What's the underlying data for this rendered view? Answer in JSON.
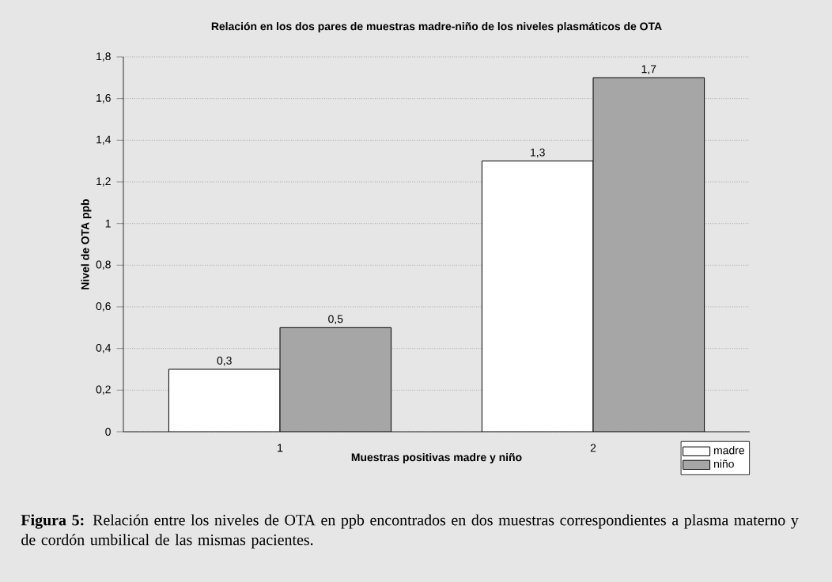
{
  "chart_data": {
    "type": "bar",
    "title": "Relación en los dos pares de muestras madre-niño de los niveles plasmáticos de OTA",
    "xlabel": "Muestras positivas madre y niño",
    "ylabel": "Nivel de OTA ppb",
    "categories": [
      "1",
      "2"
    ],
    "series": [
      {
        "name": "madre",
        "color": "#ffffff",
        "values": [
          0.3,
          1.3
        ],
        "value_labels": [
          "0,3",
          "1,3"
        ]
      },
      {
        "name": "niño",
        "color": "#a6a6a6",
        "values": [
          0.5,
          1.7
        ],
        "value_labels": [
          "0,5",
          "1,7"
        ]
      }
    ],
    "ylim": [
      0,
      1.8
    ],
    "yticks": [
      {
        "value": 0,
        "label": "0"
      },
      {
        "value": 0.2,
        "label": "0,2"
      },
      {
        "value": 0.4,
        "label": "0,4"
      },
      {
        "value": 0.6,
        "label": "0,6"
      },
      {
        "value": 0.8,
        "label": "0,8"
      },
      {
        "value": 1,
        "label": "1"
      },
      {
        "value": 1.2,
        "label": "1,2"
      },
      {
        "value": 1.4,
        "label": "1,4"
      },
      {
        "value": 1.6,
        "label": "1,6"
      },
      {
        "value": 1.8,
        "label": "1,8"
      }
    ],
    "grid": "y",
    "legend": "bottom right",
    "annotations": [
      "**Figura 5:** Relación entre los niveles de OTA en ppb encontrados en dos muestras correspondientes a plasma materno y de cordón umbilical de las mismas pacientes."
    ]
  }
}
